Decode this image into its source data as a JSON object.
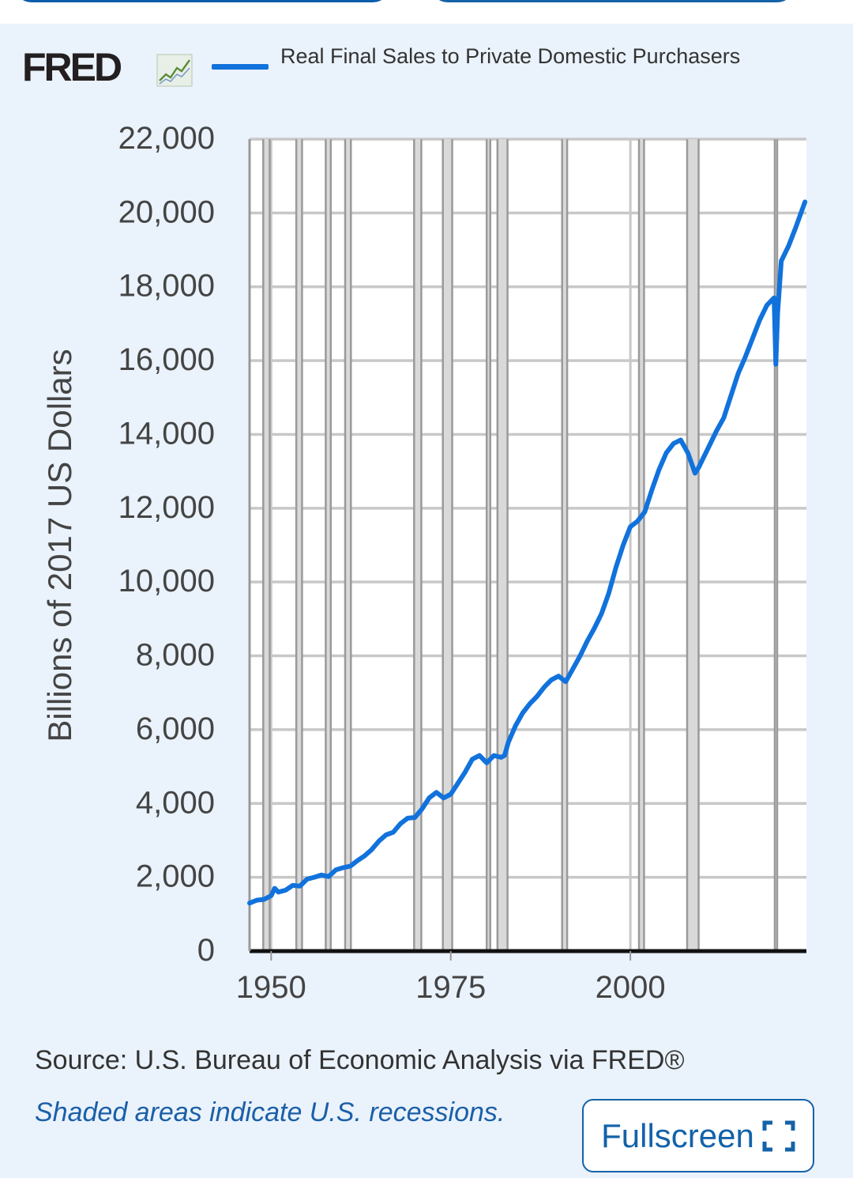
{
  "header_buttons": [
    {
      "label": ""
    },
    {
      "label": ""
    }
  ],
  "logo": {
    "text": "FRED"
  },
  "legend": {
    "series_name": "Real Final Sales to Private Domestic Purchasers",
    "color": "#1172dc"
  },
  "footer": {
    "source": "Source: U.S. Bureau of Economic Analysis via FRED®",
    "recession_note": "Shaded areas indicate U.S. recessions.",
    "fullscreen_label": "Fullscreen",
    "fullscreen_icon": "fullscreen-expand-icon",
    "link_color": "#1462a8"
  },
  "chart_data": {
    "type": "line",
    "title": "",
    "xlabel": "",
    "ylabel": "Billions of 2017 US Dollars",
    "xlim": [
      1947,
      2024.5
    ],
    "ylim": [
      0,
      22000
    ],
    "yticks": [
      0,
      2000,
      4000,
      6000,
      8000,
      10000,
      12000,
      14000,
      16000,
      18000,
      20000,
      22000
    ],
    "ytick_labels": [
      "0",
      "2,000",
      "4,000",
      "6,000",
      "8,000",
      "10,000",
      "12,000",
      "14,000",
      "16,000",
      "18,000",
      "20,000",
      "22,000"
    ],
    "xticks": [
      1950,
      1975,
      2000
    ],
    "xtick_labels": [
      "1950",
      "1975",
      "2000"
    ],
    "grid": true,
    "recessions": [
      [
        1948.9,
        1949.8
      ],
      [
        1953.5,
        1954.3
      ],
      [
        1957.6,
        1958.3
      ],
      [
        1960.3,
        1961.1
      ],
      [
        1969.9,
        1970.9
      ],
      [
        1973.9,
        1975.2
      ],
      [
        1980.0,
        1980.5
      ],
      [
        1981.5,
        1982.9
      ],
      [
        1990.5,
        1991.2
      ],
      [
        2001.2,
        2001.9
      ],
      [
        2007.9,
        2009.5
      ],
      [
        2020.1,
        2020.4
      ]
    ],
    "series": [
      {
        "name": "Real Final Sales to Private Domestic Purchasers",
        "color": "#1172dc",
        "x": [
          1947,
          1948,
          1949,
          1950,
          1950.5,
          1951,
          1952,
          1953,
          1954,
          1955,
          1956,
          1957,
          1958,
          1959,
          1960,
          1961,
          1962,
          1963,
          1964,
          1965,
          1966,
          1967,
          1968,
          1969,
          1970,
          1971,
          1972,
          1973,
          1974,
          1975,
          1976,
          1977,
          1978,
          1979,
          1980,
          1980.5,
          1981,
          1982,
          1982.5,
          1983,
          1984,
          1985,
          1986,
          1987,
          1988,
          1989,
          1990,
          1991,
          1992,
          1993,
          1994,
          1995,
          1996,
          1997,
          1998,
          1999,
          2000,
          2001,
          2002,
          2003,
          2004,
          2005,
          2006,
          2007,
          2008,
          2009,
          2009.5,
          2010,
          2011,
          2012,
          2013,
          2014,
          2015,
          2016,
          2017,
          2018,
          2019,
          2020.0,
          2020.25,
          2020.5,
          2021,
          2022,
          2023,
          2024.3
        ],
        "values": [
          1300,
          1380,
          1400,
          1500,
          1700,
          1600,
          1650,
          1780,
          1760,
          1950,
          2000,
          2060,
          2020,
          2200,
          2260,
          2300,
          2450,
          2580,
          2750,
          2980,
          3150,
          3220,
          3450,
          3600,
          3620,
          3850,
          4150,
          4300,
          4150,
          4250,
          4550,
          4850,
          5200,
          5300,
          5100,
          5200,
          5300,
          5250,
          5300,
          5650,
          6100,
          6450,
          6700,
          6900,
          7150,
          7350,
          7450,
          7300,
          7650,
          8000,
          8400,
          8750,
          9150,
          9700,
          10400,
          11000,
          11500,
          11650,
          11900,
          12500,
          13050,
          13500,
          13750,
          13850,
          13500,
          12950,
          13100,
          13300,
          13700,
          14100,
          14450,
          15050,
          15650,
          16100,
          16600,
          17100,
          17500,
          17700,
          15900,
          17300,
          18700,
          19100,
          19600,
          20300
        ]
      }
    ]
  }
}
